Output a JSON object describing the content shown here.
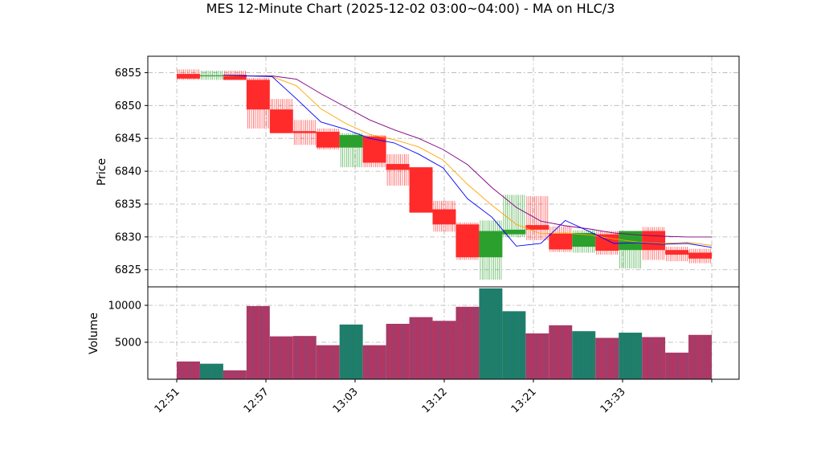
{
  "chart_data": {
    "type": "candlestick",
    "title": "MES 12-Minute Chart (2025-12-02 03:00~04:00) - MA on HLC/3",
    "price_panel": {
      "ylabel": "Price",
      "yticks": [
        6825,
        6830,
        6835,
        6840,
        6845,
        6850,
        6855
      ],
      "ylim": [
        6822.4,
        6857.5
      ],
      "grid": true
    },
    "volume_panel": {
      "ylabel": "Volume",
      "yticks": [
        5000,
        10000
      ],
      "ylim": [
        0,
        12500
      ],
      "grid": true
    },
    "xtick_labels": [
      "12:51",
      "12:57",
      "13:03",
      "13:12",
      "13:21",
      "13:33"
    ],
    "up_color": "#2ca02c",
    "down_color": "#ff2a2a",
    "volume_colors": {
      "up_fill": "#1f7f5f",
      "down_fill": "#c0305a",
      "edge": "#1f77b4"
    },
    "ma_colors": {
      "fast": "#0000ff",
      "mid": "#ffa500",
      "slow": "#800080"
    },
    "bars": [
      {
        "o": 6854.8,
        "h": 6855.5,
        "l": 6853.9,
        "c": 6854.1,
        "v": 2400
      },
      {
        "o": 6854.6,
        "h": 6855.3,
        "l": 6853.9,
        "c": 6854.6,
        "v": 2100
      },
      {
        "o": 6854.7,
        "h": 6855.3,
        "l": 6853.9,
        "c": 6853.9,
        "v": 1200
      },
      {
        "o": 6853.9,
        "h": 6854.2,
        "l": 6846.5,
        "c": 6849.4,
        "v": 9900
      },
      {
        "o": 6849.4,
        "h": 6851.0,
        "l": 6845.8,
        "c": 6845.8,
        "v": 5800
      },
      {
        "o": 6846.1,
        "h": 6847.8,
        "l": 6844.0,
        "c": 6845.8,
        "v": 5850
      },
      {
        "o": 6846.0,
        "h": 6846.5,
        "l": 6843.3,
        "c": 6843.6,
        "v": 4600
      },
      {
        "o": 6843.6,
        "h": 6845.8,
        "l": 6840.6,
        "c": 6845.5,
        "v": 7400
      },
      {
        "o": 6845.3,
        "h": 6845.5,
        "l": 6840.6,
        "c": 6841.3,
        "v": 4600
      },
      {
        "o": 6841.1,
        "h": 6842.6,
        "l": 6837.8,
        "c": 6840.2,
        "v": 7500
      },
      {
        "o": 6840.6,
        "h": 6840.6,
        "l": 6833.7,
        "c": 6833.7,
        "v": 8400
      },
      {
        "o": 6834.2,
        "h": 6835.5,
        "l": 6830.8,
        "c": 6831.9,
        "v": 7900
      },
      {
        "o": 6831.9,
        "h": 6832.2,
        "l": 6826.5,
        "c": 6826.9,
        "v": 9800
      },
      {
        "o": 6826.9,
        "h": 6832.5,
        "l": 6823.5,
        "c": 6830.9,
        "v": 12300
      },
      {
        "o": 6830.4,
        "h": 6836.4,
        "l": 6830.0,
        "c": 6831.1,
        "v": 9200
      },
      {
        "o": 6831.8,
        "h": 6836.2,
        "l": 6829.5,
        "c": 6831.1,
        "v": 6200
      },
      {
        "o": 6830.5,
        "h": 6831.6,
        "l": 6827.7,
        "c": 6828.1,
        "v": 7300
      },
      {
        "o": 6828.5,
        "h": 6831.0,
        "l": 6827.6,
        "c": 6830.6,
        "v": 6500
      },
      {
        "o": 6830.4,
        "h": 6830.9,
        "l": 6827.3,
        "c": 6827.9,
        "v": 5600
      },
      {
        "o": 6828.0,
        "h": 6830.9,
        "l": 6825.2,
        "c": 6830.9,
        "v": 6300
      },
      {
        "o": 6830.9,
        "h": 6831.5,
        "l": 6826.5,
        "c": 6828.0,
        "v": 5700
      },
      {
        "o": 6828.0,
        "h": 6828.5,
        "l": 6826.3,
        "c": 6827.3,
        "v": 3600
      },
      {
        "o": 6827.6,
        "h": 6828.2,
        "l": 6826.0,
        "c": 6826.7,
        "v": 6000
      }
    ],
    "ma_fast": [
      6854.6,
      6854.5,
      6854.4,
      6851.0,
      6847.5,
      6846.4,
      6845.0,
      6844.3,
      6842.6,
      6840.5,
      6835.8,
      6833.0,
      6828.6,
      6829.0,
      6832.5,
      6830.8,
      6829.0,
      6829.1,
      6828.9,
      6829.0,
      6828.4
    ],
    "ma_mid": [
      6854.5,
      6854.5,
      6854.4,
      6853.0,
      6849.5,
      6847.3,
      6845.6,
      6844.8,
      6843.7,
      6841.7,
      6838.0,
      6834.8,
      6831.9,
      6830.5,
      6830.6,
      6830.3,
      6829.7,
      6829.2,
      6829.0,
      6829.2,
      6828.7
    ],
    "ma_slow": [
      6854.5,
      6854.5,
      6854.5,
      6854.0,
      6851.8,
      6849.8,
      6847.8,
      6846.3,
      6845.0,
      6843.3,
      6841.0,
      6837.5,
      6834.5,
      6832.4,
      6831.7,
      6831.2,
      6830.6,
      6830.3,
      6830.1,
      6830.0,
      6830.0
    ]
  }
}
